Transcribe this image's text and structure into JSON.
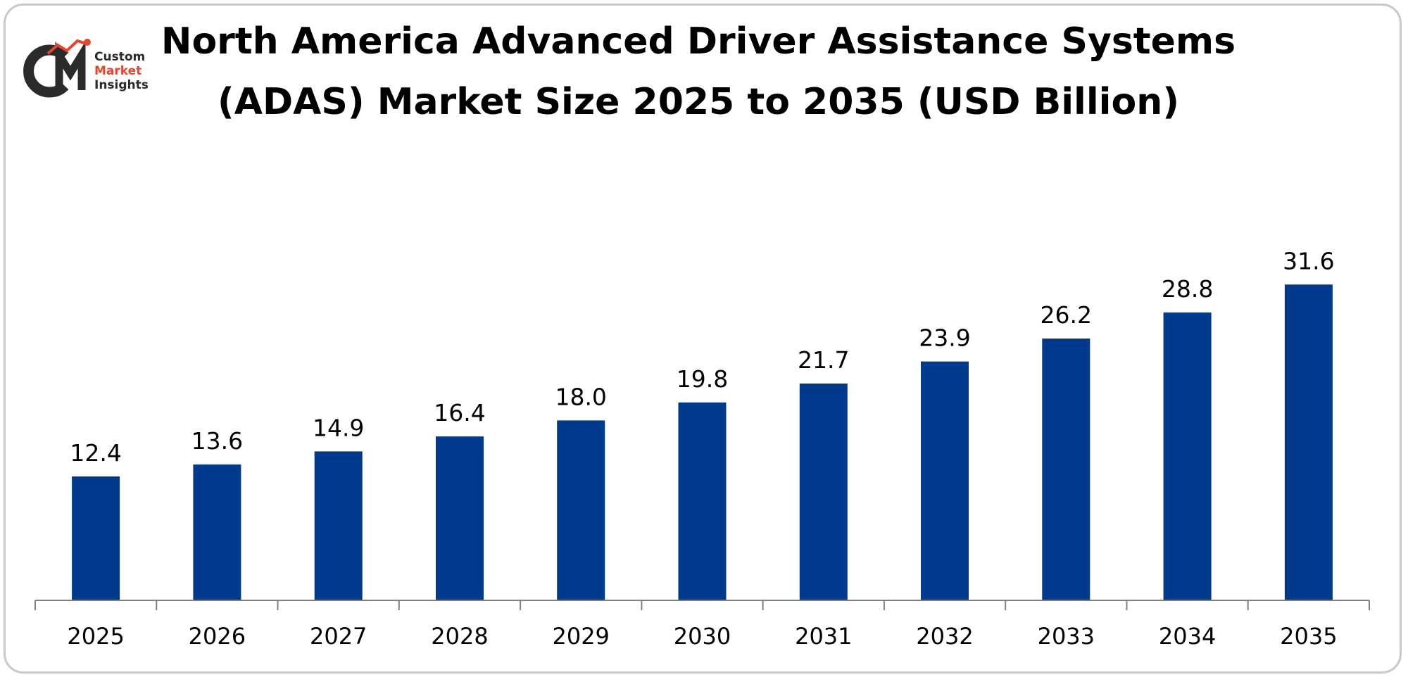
{
  "logo": {
    "line1": "Custom",
    "line2": "Market",
    "line3": "Insights",
    "dark_color": "#2b2b2b",
    "accent_color": "#e8452c"
  },
  "colors": {
    "bar": "#003a8c",
    "axis": "#808080",
    "border": "#c9c9c9"
  },
  "chart_data": {
    "type": "bar",
    "title_line1": "North America Advanced Driver Assistance Systems",
    "title_line2": "(ADAS) Market Size 2025 to 2035 (USD Billion)",
    "xlabel": "",
    "ylabel": "",
    "categories": [
      "2025",
      "2026",
      "2027",
      "2028",
      "2029",
      "2030",
      "2031",
      "2032",
      "2033",
      "2034",
      "2035"
    ],
    "values": [
      12.4,
      13.6,
      14.9,
      16.4,
      18.0,
      19.8,
      21.7,
      23.9,
      26.2,
      28.8,
      31.6
    ],
    "value_labels": [
      "12.4",
      "13.6",
      "14.9",
      "16.4",
      "18.0",
      "19.8",
      "21.7",
      "23.9",
      "26.2",
      "28.8",
      "31.6"
    ],
    "ylim": [
      0,
      35
    ],
    "grid": false,
    "legend": "none"
  }
}
